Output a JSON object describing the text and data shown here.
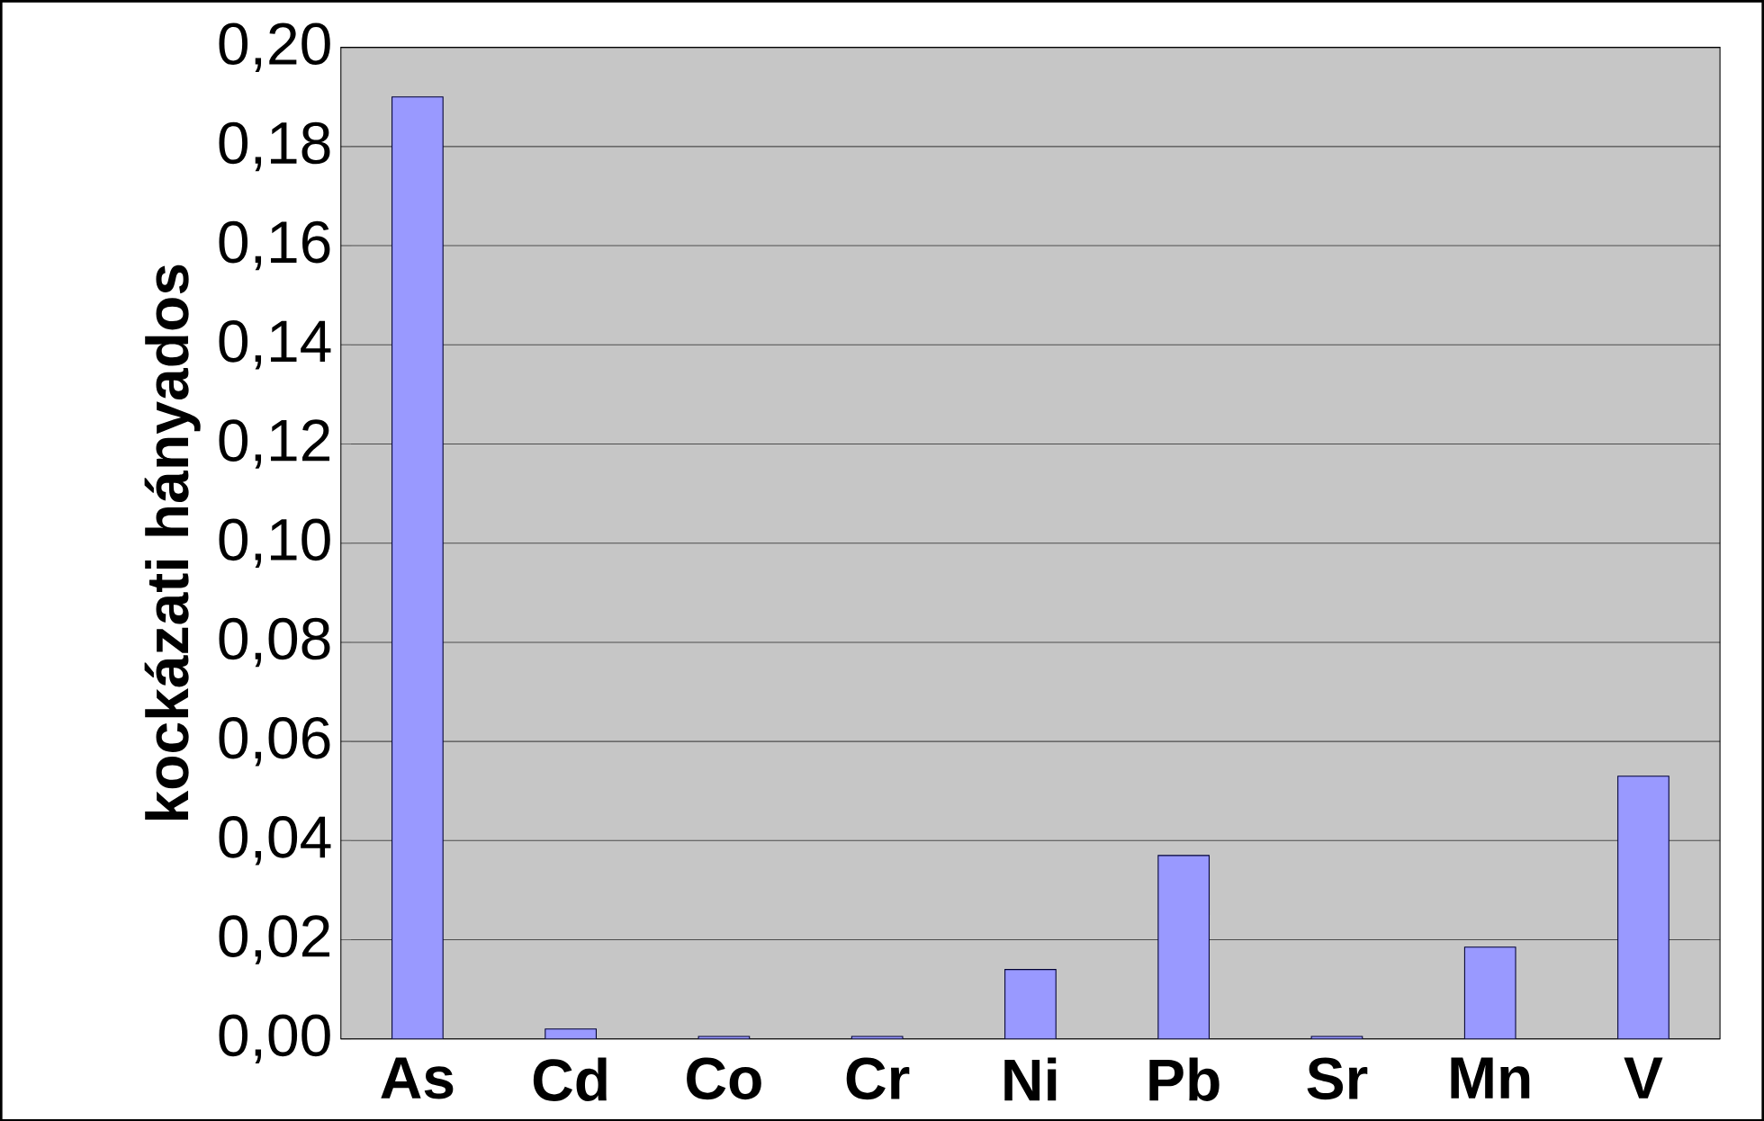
{
  "chart_data": {
    "type": "bar",
    "ylabel": "kockázati hányados",
    "categories": [
      "As",
      "Cd",
      "Co",
      "Cr",
      "Ni",
      "Pb",
      "Sr",
      "Mn",
      "V"
    ],
    "values": [
      0.19,
      0.002,
      0.0005,
      0.0005,
      0.014,
      0.037,
      0.0005,
      0.0185,
      0.053
    ],
    "color": "#9999ff",
    "ylim": [
      0,
      0.2
    ],
    "yticks": [
      {
        "value": 0,
        "label": "0,00"
      },
      {
        "value": 0.02,
        "label": "0,02"
      },
      {
        "value": 0.04,
        "label": "0,04"
      },
      {
        "value": 0.06,
        "label": "0,06"
      },
      {
        "value": 0.08,
        "label": "0,08"
      },
      {
        "value": 0.1,
        "label": "0,10"
      },
      {
        "value": 0.12,
        "label": "0,12"
      },
      {
        "value": 0.14,
        "label": "0,14"
      },
      {
        "value": 0.16,
        "label": "0,16"
      },
      {
        "value": 0.18,
        "label": "0,18"
      },
      {
        "value": 0.2,
        "label": "0,20"
      }
    ],
    "grid": "y"
  }
}
